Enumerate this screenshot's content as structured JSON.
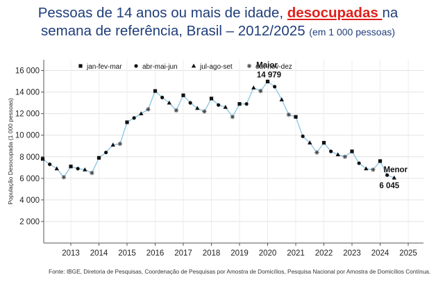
{
  "title": {
    "line1_prefix": "Pessoas de 14 anos ou mais de idade, ",
    "line1_highlight": "desocupadas ",
    "line1_suffix": "na",
    "line2_main": "semana de referência,  Brasil – 2012/2025 ",
    "line2_unit": "(em 1 000 pessoas)"
  },
  "source": "Fonte: IBGE, Diretoria de Pesquisas, Coordenação de Pesquisas por Amostra de Domicílios, Pesquisa Nacional por Amostra de Domicílios Contínua.",
  "chart_data": {
    "type": "line",
    "ylabel": "População Desocupada (1 000 pessoas)",
    "xlabel": "",
    "ylim": [
      0,
      17000
    ],
    "yticks": [
      2000,
      4000,
      6000,
      8000,
      10000,
      12000,
      14000,
      16000
    ],
    "ytick_labels": [
      "2 000",
      "4 000",
      "6 000",
      "8 000",
      "10 000",
      "12 000",
      "14 000",
      "16 000"
    ],
    "xticks": [
      "2013",
      "2014",
      "2015",
      "2016",
      "2017",
      "2018",
      "2019",
      "2020",
      "2021",
      "2022",
      "2023",
      "2024",
      "2025"
    ],
    "grid": true,
    "line_color": "#8ec8e6",
    "legend_position": "top",
    "legend": [
      {
        "name": "jan-fev-mar",
        "marker": "square"
      },
      {
        "name": "abr-mai-jun",
        "marker": "circle"
      },
      {
        "name": "jul-ago-set",
        "marker": "triangle"
      },
      {
        "name": "out-nov-dez",
        "marker": "asterisk"
      }
    ],
    "start_year": 2012,
    "points": [
      {
        "label": "2012 jan-fev-mar",
        "value": 7800
      },
      {
        "label": "2012 abr-mai-jun",
        "value": 7300
      },
      {
        "label": "2012 jul-ago-set",
        "value": 6900
      },
      {
        "label": "2012 out-nov-dez",
        "value": 6100
      },
      {
        "label": "2013 jan-fev-mar",
        "value": 7100
      },
      {
        "label": "2013 abr-mai-jun",
        "value": 6900
      },
      {
        "label": "2013 jul-ago-set",
        "value": 6800
      },
      {
        "label": "2013 out-nov-dez",
        "value": 6500
      },
      {
        "label": "2014 jan-fev-mar",
        "value": 7900
      },
      {
        "label": "2014 abr-mai-jun",
        "value": 8400
      },
      {
        "label": "2014 jul-ago-set",
        "value": 9100
      },
      {
        "label": "2014 out-nov-dez",
        "value": 9200
      },
      {
        "label": "2015 jan-fev-mar",
        "value": 11200
      },
      {
        "label": "2015 abr-mai-jun",
        "value": 11600
      },
      {
        "label": "2015 jul-ago-set",
        "value": 12000
      },
      {
        "label": "2015 out-nov-dez",
        "value": 12400
      },
      {
        "label": "2016 jan-fev-mar",
        "value": 14100
      },
      {
        "label": "2016 abr-mai-jun",
        "value": 13500
      },
      {
        "label": "2016 jul-ago-set",
        "value": 13000
      },
      {
        "label": "2016 out-nov-dez",
        "value": 12300
      },
      {
        "label": "2017 jan-fev-mar",
        "value": 13700
      },
      {
        "label": "2017 abr-mai-jun",
        "value": 13000
      },
      {
        "label": "2017 jul-ago-set",
        "value": 12500
      },
      {
        "label": "2017 out-nov-dez",
        "value": 12200
      },
      {
        "label": "2018 jan-fev-mar",
        "value": 13400
      },
      {
        "label": "2018 abr-mai-jun",
        "value": 12800
      },
      {
        "label": "2018 jul-ago-set",
        "value": 12600
      },
      {
        "label": "2018 out-nov-dez",
        "value": 11700
      },
      {
        "label": "2019 jan-fev-mar",
        "value": 12900
      },
      {
        "label": "2019 abr-mai-jun",
        "value": 12900
      },
      {
        "label": "2019 jul-ago-set",
        "value": 14400
      },
      {
        "label": "2019 out-nov-dez",
        "value": 14100
      },
      {
        "label": "2020 jan-fev-mar",
        "value": 14979
      },
      {
        "label": "2020 abr-mai-jun",
        "value": 14500
      },
      {
        "label": "2020 jul-ago-set",
        "value": 13300
      },
      {
        "label": "2020 out-nov-dez",
        "value": 11900
      },
      {
        "label": "2021 jan-fev-mar",
        "value": 11700
      },
      {
        "label": "2021 abr-mai-jun",
        "value": 9900
      },
      {
        "label": "2021 jul-ago-set",
        "value": 9300
      },
      {
        "label": "2021 out-nov-dez",
        "value": 8400
      },
      {
        "label": "2022 jan-fev-mar",
        "value": 9300
      },
      {
        "label": "2022 abr-mai-jun",
        "value": 8500
      },
      {
        "label": "2022 jul-ago-set",
        "value": 8200
      },
      {
        "label": "2022 out-nov-dez",
        "value": 8000
      },
      {
        "label": "2023 jan-fev-mar",
        "value": 8500
      },
      {
        "label": "2023 abr-mai-jun",
        "value": 7400
      },
      {
        "label": "2023 jul-ago-set",
        "value": 6900
      },
      {
        "label": "2023 out-nov-dez",
        "value": 6800
      },
      {
        "label": "2024 jan-fev-mar",
        "value": 7600
      },
      {
        "label": "2024 abr-mai-jun",
        "value": 6300
      },
      {
        "label": "2024 jul-ago-set",
        "value": 6045
      }
    ],
    "annotations": [
      {
        "text_top": "Maior",
        "text_bottom": "14 979",
        "point_index": 32
      },
      {
        "text_top": "Menor",
        "text_bottom": "6 045",
        "point_index": 50
      }
    ]
  }
}
